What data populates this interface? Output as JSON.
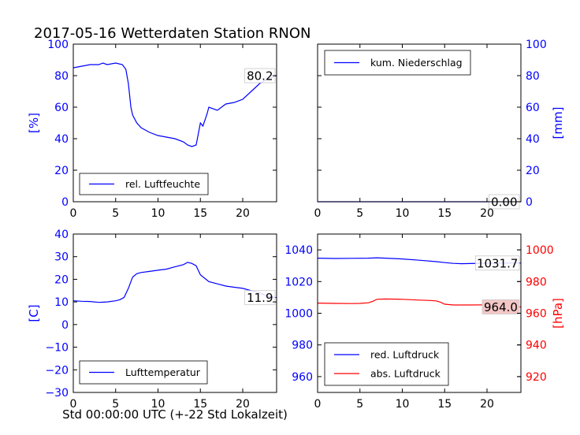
{
  "figure": {
    "title": "2017-05-16 Wetterdaten Station RNON",
    "xlabel": "Std 00:00:00 UTC (+-22 Std Lokalzeit)"
  },
  "chart_data": [
    {
      "id": "humidity",
      "type": "line",
      "xlim": [
        0,
        24
      ],
      "ylim": [
        0,
        100
      ],
      "xticks": [
        0,
        5,
        10,
        15,
        20
      ],
      "yticks": [
        0,
        20,
        40,
        60,
        80,
        100
      ],
      "ylabel": "[%]",
      "ylabel_side": "left",
      "tick_color": "#0000ff",
      "grid": false,
      "legend_position": "lower-left",
      "series": [
        {
          "name": "rel. Luftfeuchte",
          "color": "#0000ff",
          "x": [
            0,
            1,
            2,
            3,
            3.5,
            4,
            5,
            5.8,
            6.2,
            6.5,
            6.8,
            7,
            7.5,
            8,
            9,
            10,
            11,
            12,
            13,
            13.5,
            14,
            14.5,
            15,
            15.3,
            15.8,
            16,
            17,
            18,
            19,
            20,
            21,
            22,
            23,
            24
          ],
          "y": [
            85,
            86,
            87,
            87,
            88,
            87,
            88,
            87,
            84,
            75,
            60,
            55,
            50,
            47,
            44,
            42,
            41,
            40,
            38,
            36,
            35,
            36,
            50,
            48,
            56,
            60,
            58,
            62,
            63,
            65,
            70,
            75,
            78,
            80
          ],
          "end_label": "80.2"
        }
      ]
    },
    {
      "id": "precipitation",
      "type": "line",
      "xlim": [
        0,
        24
      ],
      "ylim": [
        0,
        100
      ],
      "xticks": [
        0,
        5,
        10,
        15,
        20
      ],
      "yticks": [
        0,
        20,
        40,
        60,
        80,
        100
      ],
      "ylabel": "[mm]",
      "ylabel_side": "right",
      "tick_color": "#0000ff",
      "grid": false,
      "legend_position": "upper-left",
      "series": [
        {
          "name": "kum. Niederschlag",
          "color": "#0000ff",
          "x": [
            0,
            24
          ],
          "y": [
            0,
            0
          ],
          "end_label": "0.00"
        }
      ]
    },
    {
      "id": "temperature",
      "type": "line",
      "xlim": [
        0,
        24
      ],
      "ylim": [
        -30,
        40
      ],
      "xticks": [
        0,
        5,
        10,
        15,
        20
      ],
      "yticks": [
        -30,
        -20,
        -10,
        0,
        10,
        20,
        30,
        40
      ],
      "ylabel": "[C]",
      "ylabel_side": "left",
      "tick_color": "#0000ff",
      "grid": false,
      "legend_position": "lower-left",
      "series": [
        {
          "name": "Lufttemperatur",
          "color": "#0000ff",
          "x": [
            0,
            1,
            2,
            3,
            4,
            5,
            5.5,
            6,
            6.5,
            7,
            7.5,
            8,
            9,
            10,
            11,
            12,
            13,
            13.5,
            14,
            14.5,
            15,
            15.5,
            16,
            17,
            18,
            19,
            20,
            21,
            22,
            23,
            24
          ],
          "y": [
            10.5,
            10.3,
            10.2,
            9.8,
            10,
            10.5,
            11,
            12,
            16,
            21,
            22.5,
            23,
            23.5,
            24,
            24.5,
            25.5,
            26.5,
            27.5,
            27,
            26,
            22,
            20.5,
            19,
            18,
            17,
            16.5,
            16,
            15,
            14,
            12.5,
            11.9
          ],
          "end_label": "11.9"
        }
      ]
    },
    {
      "id": "pressure",
      "type": "line",
      "xlim": [
        0,
        24
      ],
      "ylim": [
        950,
        1050
      ],
      "ylim_right": [
        910,
        1010
      ],
      "xticks": [
        0,
        5,
        10,
        15,
        20
      ],
      "yticks": [
        960,
        980,
        1000,
        1020,
        1040
      ],
      "yticks_right": [
        920,
        940,
        960,
        980,
        1000
      ],
      "ylabel": "[hPa]",
      "ylabel_side": "right",
      "tick_color": "#0000ff",
      "tick_color_right": "#ff0000",
      "grid": false,
      "legend_position": "lower-left",
      "series": [
        {
          "name": "red. Luftdruck",
          "color": "#0000ff",
          "axis": "left",
          "x": [
            0,
            2,
            4,
            6,
            7,
            8,
            10,
            12,
            14,
            15,
            16,
            17,
            18,
            20,
            22,
            24
          ],
          "y": [
            1034.8,
            1034.6,
            1034.7,
            1034.8,
            1035,
            1034.8,
            1034.3,
            1033.5,
            1032.6,
            1032,
            1031.5,
            1031.3,
            1031.4,
            1031.6,
            1031.7,
            1031.7
          ],
          "end_label": "1031.7"
        },
        {
          "name": "abs. Luftdruck",
          "color": "#ff0000",
          "axis": "right",
          "x": [
            0,
            2,
            4,
            5,
            6,
            6.5,
            7,
            8,
            10,
            12,
            13,
            14,
            14.5,
            15,
            16,
            18,
            20,
            22,
            24
          ],
          "y": [
            966.4,
            966.2,
            966.1,
            966.2,
            966.6,
            967.5,
            968.8,
            969,
            968.8,
            968.3,
            968.1,
            967.8,
            967,
            965.7,
            965.2,
            965.2,
            965.3,
            964.5,
            964.0
          ],
          "end_label": "964.0"
        }
      ]
    }
  ]
}
